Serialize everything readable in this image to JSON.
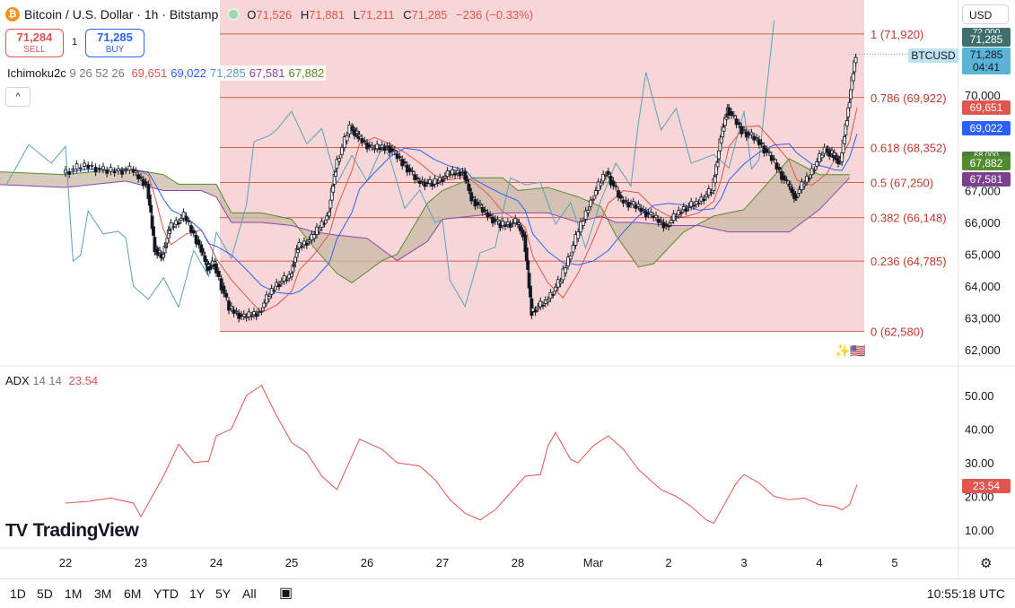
{
  "header": {
    "symbol_title": "Bitcoin / U.S. Dollar · 1h · Bitstamp",
    "coin_glyph": "₿",
    "open_label": "O",
    "open": "71,526",
    "high_label": "H",
    "high": "71,881",
    "low_label": "L",
    "low": "71,211",
    "close_label": "C",
    "close": "71,285",
    "change": "−236 (−0.33%)"
  },
  "trade": {
    "sell_price": "71,284",
    "sell_label": "SELL",
    "spread": "1",
    "buy_price": "71,285",
    "buy_label": "BUY"
  },
  "ichimoku": {
    "name": "Ichimoku2c",
    "params": "9 26 52 26",
    "values": [
      {
        "value": "69,651",
        "color": "#e0554f"
      },
      {
        "value": "69,022",
        "color": "#2962ff"
      },
      {
        "value": "71,285",
        "color": "#5aa1b8"
      },
      {
        "value": "67,581",
        "color": "#8e44ad"
      },
      {
        "value": "67,882",
        "color": "#558b2f"
      }
    ]
  },
  "collapse_glyph": "^",
  "adx": {
    "name": "ADX",
    "params": "14 14",
    "value": "23.54"
  },
  "currency": "USD",
  "price_tags": {
    "last": "71,285",
    "countdown": "04:41",
    "symbol": "BTCUSD",
    "tenkan": "69,651",
    "kijun": "69,022",
    "span_a": "67,882",
    "span_b": "67,581",
    "adx": "23.54",
    "top_partial": "72,000",
    "top_tag": "71,285",
    "mid_partial": "68,000"
  },
  "fib_levels": [
    {
      "label": "1 (71,920)",
      "price": 71920
    },
    {
      "label": "0.786 (69,922)",
      "price": 69922
    },
    {
      "label": "0.618 (68,352)",
      "price": 68352
    },
    {
      "label": "0.5 (67,250)",
      "price": 67250
    },
    {
      "label": "0.382 (66,148)",
      "price": 66148
    },
    {
      "label": "0.236 (64,785)",
      "price": 64785
    },
    {
      "label": "0 (62,580)",
      "price": 62580
    }
  ],
  "brand": {
    "mark": "TV",
    "name": "TradingView"
  },
  "timeframes": [
    "1D",
    "5D",
    "1M",
    "3M",
    "6M",
    "YTD",
    "1Y",
    "5Y",
    "All"
  ],
  "clock": "10:55:18 UTC",
  "chart_data": [
    {
      "type": "candlestick",
      "title": "Bitcoin / U.S. Dollar · 1h · Bitstamp",
      "x_ticks": [
        "22",
        "23",
        "24",
        "25",
        "26",
        "27",
        "28",
        "Mar",
        "2",
        "3",
        "4",
        "5"
      ],
      "y_ticks": [
        "62,000",
        "63,000",
        "64,000",
        "65,000",
        "66,000",
        "67,000",
        "70,000"
      ],
      "ylim": [
        61700,
        72300
      ],
      "grid": false,
      "series": [
        {
          "name": "Ichimoku2c",
          "points": [
            [
              22.0,
              67550
            ],
            [
              22.3,
              67800
            ],
            [
              22.6,
              67600
            ],
            [
              22.9,
              67650
            ],
            [
              23.1,
              67200
            ],
            [
              23.2,
              65200
            ],
            [
              23.3,
              64900
            ],
            [
              23.4,
              65800
            ],
            [
              23.6,
              66200
            ],
            [
              23.8,
              65300
            ],
            [
              23.9,
              64600
            ],
            [
              24.0,
              64700
            ],
            [
              24.2,
              63300
            ],
            [
              24.4,
              63000
            ],
            [
              24.6,
              63200
            ],
            [
              24.8,
              64000
            ],
            [
              25.0,
              64300
            ],
            [
              25.1,
              65200
            ],
            [
              25.3,
              65500
            ],
            [
              25.5,
              66200
            ],
            [
              25.6,
              67700
            ],
            [
              25.8,
              69000
            ],
            [
              25.9,
              68700
            ],
            [
              26.1,
              68300
            ],
            [
              26.3,
              68400
            ],
            [
              26.5,
              67900
            ],
            [
              26.7,
              67300
            ],
            [
              26.9,
              67200
            ],
            [
              27.1,
              67500
            ],
            [
              27.3,
              67600
            ],
            [
              27.4,
              66800
            ],
            [
              27.6,
              66300
            ],
            [
              27.8,
              65900
            ],
            [
              28.0,
              66000
            ],
            [
              28.1,
              65600
            ],
            [
              28.2,
              63200
            ],
            [
              28.4,
              63500
            ],
            [
              28.6,
              64200
            ],
            [
              28.8,
              65500
            ],
            [
              29.0,
              66700
            ],
            [
              29.2,
              67600
            ],
            [
              29.4,
              66700
            ],
            [
              29.6,
              66500
            ],
            [
              29.8,
              66200
            ],
            [
              30.0,
              65900
            ],
            [
              30.2,
              66400
            ],
            [
              30.4,
              66600
            ],
            [
              30.6,
              67000
            ],
            [
              30.7,
              68500
            ],
            [
              30.8,
              69600
            ],
            [
              31.0,
              68900
            ],
            [
              31.2,
              68600
            ],
            [
              31.4,
              68000
            ],
            [
              31.6,
              67200
            ],
            [
              31.7,
              66800
            ],
            [
              31.9,
              67500
            ],
            [
              32.1,
              68300
            ],
            [
              32.2,
              68100
            ],
            [
              32.3,
              67900
            ],
            [
              32.4,
              69600
            ],
            [
              32.5,
              71300
            ]
          ]
        },
        {
          "name": "ADX",
          "points": [
            [
              22.0,
              18
            ],
            [
              22.3,
              18.5
            ],
            [
              22.6,
              19.5
            ],
            [
              22.9,
              18
            ],
            [
              23.0,
              14
            ],
            [
              23.3,
              26
            ],
            [
              23.5,
              35.5
            ],
            [
              23.7,
              30
            ],
            [
              23.9,
              30.5
            ],
            [
              24.0,
              38
            ],
            [
              24.2,
              40
            ],
            [
              24.4,
              50
            ],
            [
              24.6,
              53
            ],
            [
              24.8,
              44
            ],
            [
              25.0,
              36
            ],
            [
              25.2,
              33
            ],
            [
              25.4,
              26
            ],
            [
              25.6,
              22
            ],
            [
              25.9,
              37
            ],
            [
              26.2,
              34
            ],
            [
              26.4,
              30
            ],
            [
              26.7,
              29
            ],
            [
              26.9,
              25
            ],
            [
              27.1,
              19
            ],
            [
              27.3,
              15
            ],
            [
              27.5,
              13
            ],
            [
              27.7,
              16
            ],
            [
              27.9,
              21
            ],
            [
              28.1,
              26
            ],
            [
              28.3,
              26.5
            ],
            [
              28.4,
              35
            ],
            [
              28.5,
              39
            ],
            [
              28.7,
              31
            ],
            [
              28.8,
              30
            ],
            [
              29.0,
              35
            ],
            [
              29.2,
              38
            ],
            [
              29.4,
              34
            ],
            [
              29.6,
              28
            ],
            [
              29.9,
              22
            ],
            [
              30.1,
              20
            ],
            [
              30.3,
              17
            ],
            [
              30.5,
              13
            ],
            [
              30.6,
              12
            ],
            [
              30.9,
              24
            ],
            [
              31.0,
              26.5
            ],
            [
              31.2,
              24
            ],
            [
              31.4,
              20
            ],
            [
              31.6,
              19
            ],
            [
              31.8,
              19.5
            ],
            [
              32.0,
              17.5
            ],
            [
              32.2,
              17
            ],
            [
              32.3,
              16
            ],
            [
              32.4,
              17.5
            ],
            [
              32.5,
              23.5
            ]
          ]
        }
      ],
      "yticks_adx": [
        "10.00",
        "20.00",
        "30.00",
        "40.00",
        "50.00"
      ],
      "ylim_adx": [
        6,
        56
      ]
    }
  ],
  "colors": {
    "fib_fill": "#f6d1d4",
    "fib_line": "#c0392b",
    "tenkan": "#e0554f",
    "kijun": "#2962ff",
    "chikou": "#5aa1b8",
    "span_a": "#558b2f",
    "span_b": "#8e44ad",
    "cloud_green": "#d4e6c5",
    "cloud_red": "#e6c8c8",
    "adx": "#e0554f",
    "candle": "#131722"
  }
}
